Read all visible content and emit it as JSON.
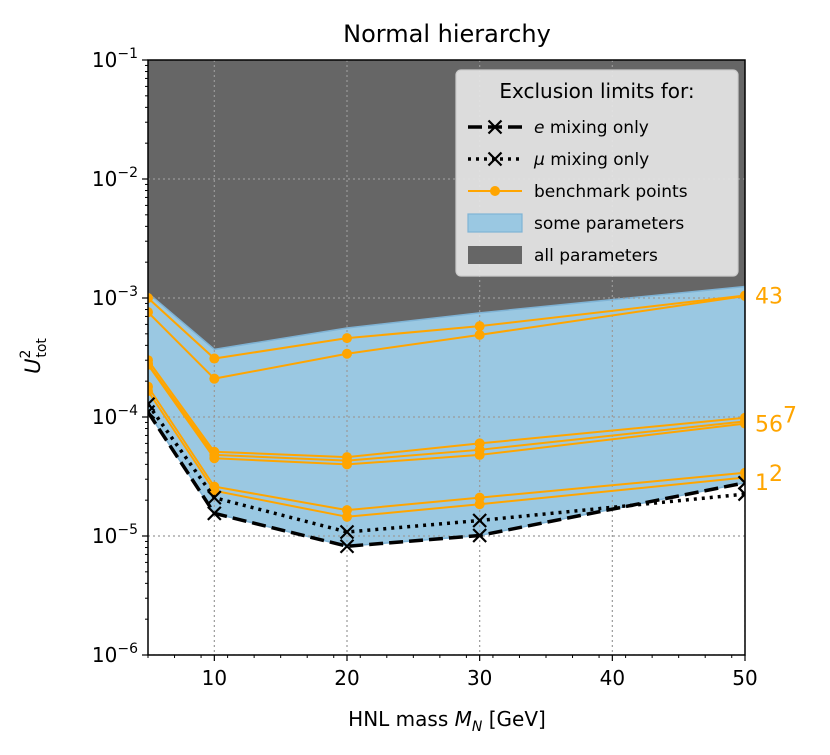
{
  "chart_data": {
    "type": "line",
    "title": "Normal hierarchy",
    "xlabel": "HNL mass M_N [GeV]",
    "xlabel_parts": {
      "prefix": "HNL mass ",
      "var": "M",
      "sub": "N",
      "suffix": " [GeV]"
    },
    "ylabel_parts": {
      "var": "U",
      "sup": "2",
      "sub": "tot"
    },
    "xscale": "linear",
    "yscale": "log",
    "xlim": [
      5,
      50
    ],
    "ylim": [
      1e-06,
      0.1
    ],
    "grid": true,
    "x_ticks": [
      "10",
      "20",
      "30",
      "40",
      "50"
    ],
    "x_tick_values": [
      10,
      20,
      30,
      40,
      50
    ],
    "y_ticks": [
      {
        "value": 1e-06,
        "base": "10",
        "exp": "−6"
      },
      {
        "value": 1e-05,
        "base": "10",
        "exp": "−5"
      },
      {
        "value": 0.0001,
        "base": "10",
        "exp": "−4"
      },
      {
        "value": 0.001,
        "base": "10",
        "exp": "−3"
      },
      {
        "value": 0.01,
        "base": "10",
        "exp": "−2"
      },
      {
        "value": 0.1,
        "base": "10",
        "exp": "−1"
      }
    ],
    "legend": {
      "title": "Exclusion limits for:",
      "placement": "top-right",
      "entries": [
        {
          "prefix": "",
          "italic": "e",
          "suffix": " mixing only",
          "style": "dashed-x"
        },
        {
          "prefix": "",
          "italic": "μ",
          "suffix": " mixing only",
          "style": "dotted-x"
        },
        {
          "prefix": "benchmark points",
          "italic": "",
          "suffix": "",
          "style": "orange-line"
        },
        {
          "prefix": "some parameters",
          "italic": "",
          "suffix": "",
          "style": "blue-patch"
        },
        {
          "prefix": "all parameters",
          "italic": "",
          "suffix": "",
          "style": "gray-patch"
        }
      ]
    },
    "colors": {
      "all_parameters": "#666666",
      "some_parameters": "#9ac8e2",
      "some_parameters_edge": "#7fb3d5",
      "benchmark": "#ffa500",
      "mixing": "#000000"
    },
    "all_parameters_region": {
      "x": [
        5,
        10,
        20,
        30,
        50
      ],
      "lower": [
        0.0011,
        0.00037,
        0.00056,
        0.00075,
        0.00125
      ],
      "upper": 0.1
    },
    "some_parameters_region": {
      "x": [
        5,
        10,
        20,
        30,
        50
      ],
      "lower": [
        0.00011,
        1.55e-05,
        8.2e-06,
        1.01e-05,
        2.8e-05
      ],
      "upper": [
        0.0011,
        0.00037,
        0.00056,
        0.00075,
        0.00125
      ]
    },
    "mixing_series": [
      {
        "name": "e mixing only",
        "style": "dashed",
        "x": [
          5,
          10,
          20,
          30,
          50
        ],
        "y": [
          0.00011,
          1.55e-05,
          8.2e-06,
          1.01e-05,
          2.8e-05
        ]
      },
      {
        "name": "μ mixing only",
        "style": "dotted",
        "x": [
          5,
          10,
          20,
          30,
          50
        ],
        "y": [
          0.000128,
          2.1e-05,
          1.08e-05,
          1.35e-05,
          2.25e-05
        ]
      }
    ],
    "benchmark_series": [
      {
        "name": "bp-a",
        "x": [
          5,
          10,
          20,
          30,
          50
        ],
        "y": [
          0.001,
          0.00031,
          0.00046,
          0.00058,
          0.00105
        ]
      },
      {
        "name": "bp-b",
        "x": [
          5,
          10,
          20,
          30,
          50
        ],
        "y": [
          0.00076,
          0.00021,
          0.00034,
          0.00049,
          0.00104
        ]
      },
      {
        "name": "bp-c",
        "x": [
          5,
          10,
          20,
          30,
          50
        ],
        "y": [
          0.0003,
          5.1e-05,
          4.6e-05,
          6e-05,
          9.85e-05
        ]
      },
      {
        "name": "bp-d",
        "x": [
          5,
          10,
          20,
          30,
          50
        ],
        "y": [
          0.00028,
          4.8e-05,
          4.3e-05,
          5.3e-05,
          9.2e-05
        ]
      },
      {
        "name": "bp-e",
        "x": [
          5,
          10,
          20,
          30,
          50
        ],
        "y": [
          0.000275,
          4.5e-05,
          4e-05,
          4.8e-05,
          8.8e-05
        ]
      },
      {
        "name": "bp-f",
        "x": [
          5,
          10,
          20,
          30,
          50
        ],
        "y": [
          0.00018,
          2.6e-05,
          1.65e-05,
          2.1e-05,
          3.4e-05
        ]
      },
      {
        "name": "bp-g",
        "x": [
          5,
          10,
          20,
          30,
          50
        ],
        "y": [
          0.000165,
          2.4e-05,
          1.45e-05,
          1.85e-05,
          3.1e-05
        ]
      }
    ],
    "annotations": [
      {
        "text": "43",
        "sup": "",
        "y": 0.00105
      },
      {
        "text": "56",
        "sup": "7",
        "y": 8.8e-05
      },
      {
        "text": "1",
        "sup": "2",
        "y": 2.85e-05
      }
    ]
  }
}
